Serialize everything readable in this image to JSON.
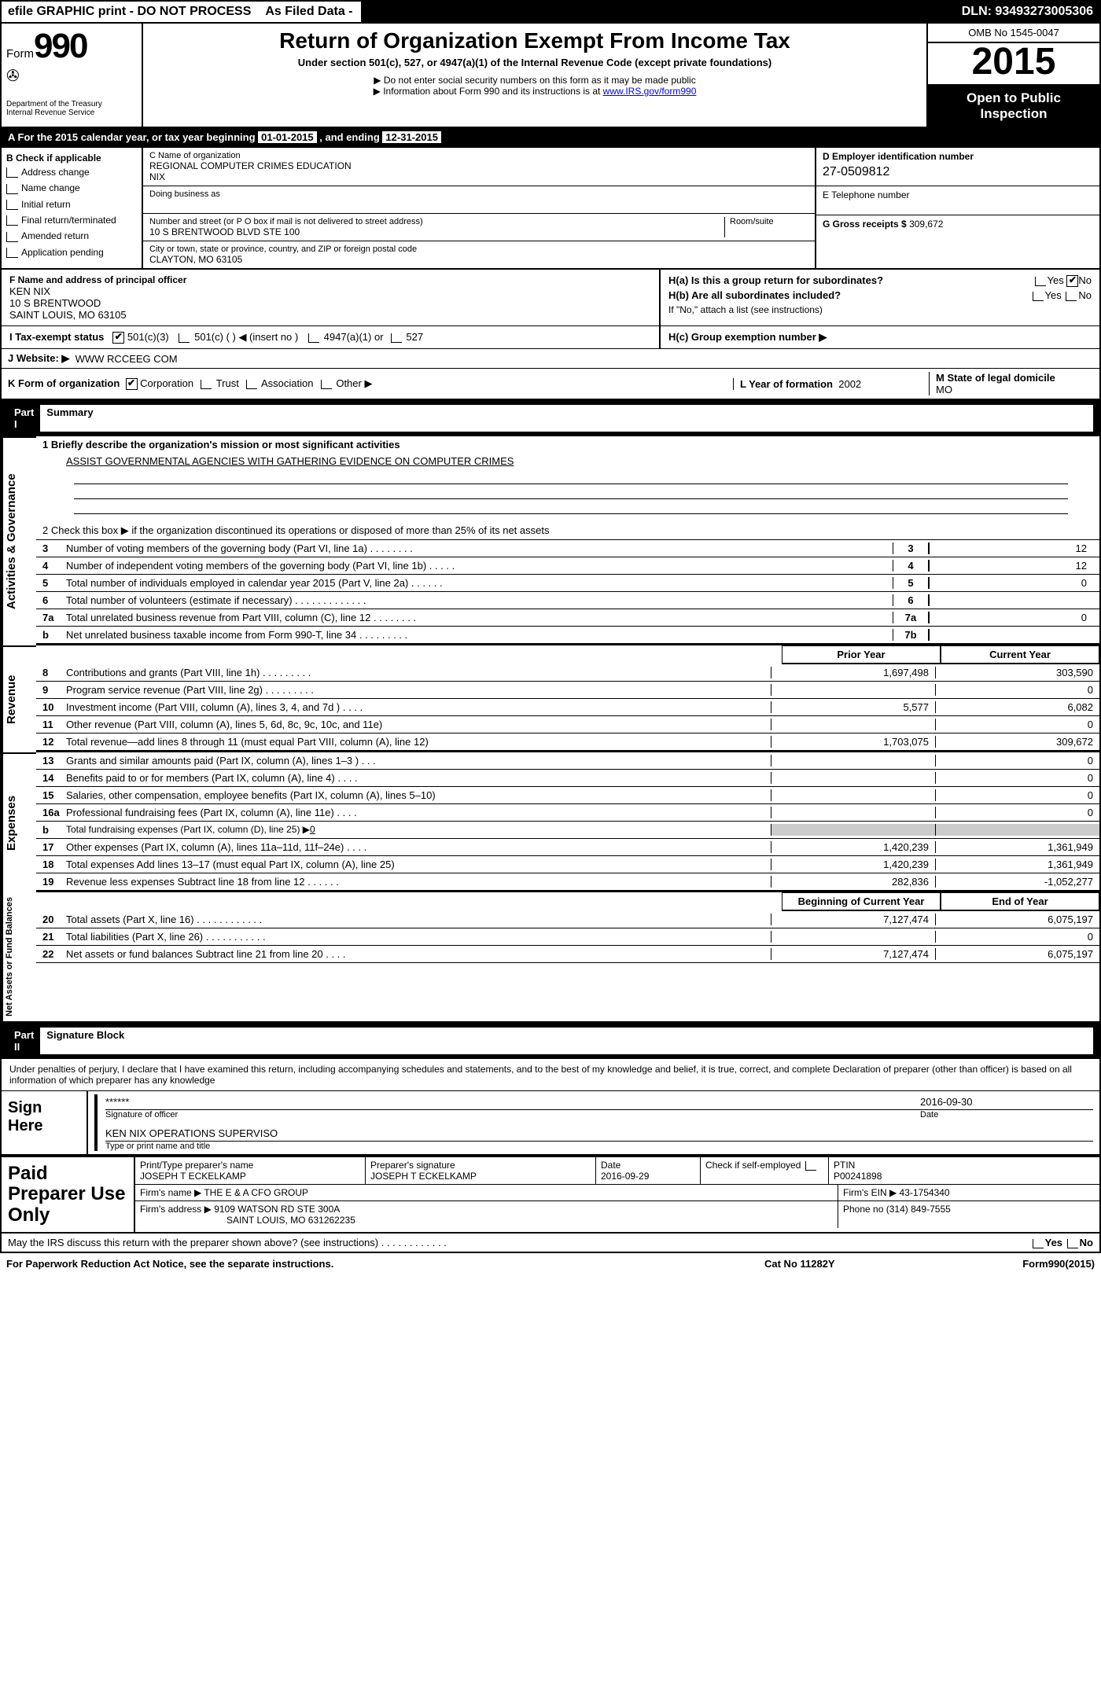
{
  "colors": {
    "black": "#000000",
    "white": "#ffffff",
    "shade": "#cccccc",
    "link": "#0000ee"
  },
  "header_bar": {
    "efile": "efile GRAPHIC print - DO NOT PROCESS",
    "asfiled": "As Filed Data -",
    "dln_label": "DLN:",
    "dln": "93493273005306"
  },
  "top_left": {
    "form_word": "Form",
    "form_num": "990",
    "dept": "Department of the Treasury",
    "irs": "Internal Revenue Service"
  },
  "top_mid": {
    "title": "Return of Organization Exempt From Income Tax",
    "sub": "Under section 501(c), 527, or 4947(a)(1) of the Internal Revenue Code (except private foundations)",
    "note1": "▶ Do not enter social security numbers on this form as it may be made public",
    "note2_pre": "▶ Information about Form 990 and its instructions is at ",
    "note2_link": "www.IRS.gov/form990"
  },
  "top_right": {
    "omb": "OMB No 1545-0047",
    "year": "2015",
    "open1": "Open to Public",
    "open2": "Inspection"
  },
  "lineA": {
    "pre": "A  For the 2015 calendar year, or tax year beginning ",
    "begin": "01-01-2015",
    "mid": " , and ending ",
    "end": "12-31-2015"
  },
  "colB": {
    "hdr": "B  Check if applicable",
    "items": [
      "Address change",
      "Name change",
      "Initial return",
      "Final return/terminated",
      "Amended return",
      "Application pending"
    ]
  },
  "colC": {
    "name_lbl": "C Name of organization",
    "name": "REGIONAL COMPUTER CRIMES EDUCATION",
    "name2": "NIX",
    "dba_lbl": "Doing business as",
    "street_lbl": "Number and street (or P O  box if mail is not delivered to street address)",
    "room_lbl": "Room/suite",
    "street": "10 S BRENTWOOD BLVD STE 100",
    "city_lbl": "City or town, state or province, country, and ZIP or foreign postal code",
    "city": "CLAYTON, MO  63105"
  },
  "colDEG": {
    "d_lbl": "D Employer identification number",
    "d_val": "27-0509812",
    "e_lbl": "E Telephone number",
    "g_lbl": "G Gross receipts $",
    "g_val": "309,672"
  },
  "officer": {
    "f_lbl": "F  Name and address of principal officer",
    "name": "KEN NIX",
    "addr1": "10 S BRENTWOOD",
    "addr2": "SAINT LOUIS, MO  63105"
  },
  "h_section": {
    "ha": "H(a)  Is this a group return for subordinates?",
    "hb": "H(b)  Are all subordinates included?",
    "hnote": "If \"No,\" attach a list  (see instructions)",
    "hc": "H(c)  Group exemption number ▶",
    "yes": "Yes",
    "no": "No"
  },
  "lineI": {
    "lbl": "I  Tax-exempt status",
    "opts": [
      "501(c)(3)",
      "501(c) (  ) ◀ (insert no )",
      "4947(a)(1) or",
      "527"
    ]
  },
  "lineJ": {
    "lbl": "J  Website: ▶",
    "val": "WWW RCCEEG COM"
  },
  "lineK": {
    "lbl": "K Form of organization",
    "opts": [
      "Corporation",
      "Trust",
      "Association",
      "Other ▶"
    ]
  },
  "lineL": {
    "lbl": "L Year of formation",
    "val": "2002"
  },
  "lineM": {
    "lbl": "M State of legal domicile",
    "val": "MO"
  },
  "part1": {
    "num": "Part I",
    "title": "Summary"
  },
  "summary": {
    "l1_lbl": "1 Briefly describe the organization's mission or most significant activities",
    "l1_val": "ASSIST GOVERNMENTAL AGENCIES WITH GATHERING EVIDENCE ON COMPUTER CRIMES",
    "l2": "2  Check this box ▶     if the organization discontinued its operations or disposed of more than 25% of its net assets",
    "rows": [
      {
        "n": "3",
        "t": "Number of voting members of the governing body (Part VI, line 1a)   .   .   .   .   .   .   .   .",
        "k": "3",
        "v": "12"
      },
      {
        "n": "4",
        "t": "Number of independent voting members of the governing body (Part VI, line 1b)   .   .   .   .   .",
        "k": "4",
        "v": "12"
      },
      {
        "n": "5",
        "t": "Total number of individuals employed in calendar year 2015 (Part V, line 2a)   .   .   .   .   .   .",
        "k": "5",
        "v": "0"
      },
      {
        "n": "6",
        "t": "Total number of volunteers (estimate if necessary)   .   .   .   .   .   .   .   .   .   .   .   .   .",
        "k": "6",
        "v": ""
      },
      {
        "n": "7a",
        "t": "Total unrelated business revenue from Part VIII, column (C), line 12   .   .   .   .   .   .   .   .",
        "k": "7a",
        "v": "0"
      },
      {
        "n": "b",
        "t": "Net unrelated business taxable income from Form 990-T, line 34   .   .   .   .   .   .   .   .   .",
        "k": "7b",
        "v": ""
      }
    ]
  },
  "two_col_hdr": {
    "prior": "Prior Year",
    "current": "Current Year"
  },
  "revenue": {
    "side": "Revenue",
    "rows": [
      {
        "n": "8",
        "t": "Contributions and grants (Part VIII, line 1h)   .   .   .   .   .   .   .   .   .",
        "p": "1,697,498",
        "c": "303,590"
      },
      {
        "n": "9",
        "t": "Program service revenue (Part VIII, line 2g)   .   .   .   .   .   .   .   .   .",
        "p": "",
        "c": "0"
      },
      {
        "n": "10",
        "t": "Investment income (Part VIII, column (A), lines 3, 4, and 7d )   .   .   .   .",
        "p": "5,577",
        "c": "6,082"
      },
      {
        "n": "11",
        "t": "Other revenue (Part VIII, column (A), lines 5, 6d, 8c, 9c, 10c, and 11e)",
        "p": "",
        "c": "0"
      },
      {
        "n": "12",
        "t": "Total revenue—add lines 8 through 11 (must equal Part VIII, column (A), line 12)",
        "p": "1,703,075",
        "c": "309,672"
      }
    ]
  },
  "expenses": {
    "side": "Expenses",
    "rows": [
      {
        "n": "13",
        "t": "Grants and similar amounts paid (Part IX, column (A), lines 1–3 )   .   .   .",
        "p": "",
        "c": "0"
      },
      {
        "n": "14",
        "t": "Benefits paid to or for members (Part IX, column (A), line 4)   .   .   .   .",
        "p": "",
        "c": "0"
      },
      {
        "n": "15",
        "t": "Salaries, other compensation, employee benefits (Part IX, column (A), lines 5–10)",
        "p": "",
        "c": "0"
      },
      {
        "n": "16a",
        "t": "Professional fundraising fees (Part IX, column (A), line 11e)   .   .   .   .",
        "p": "",
        "c": "0"
      },
      {
        "n": "b",
        "t": "Total fundraising expenses (Part IX, column (D), line 25) ▶",
        "p": "shade",
        "c": "shade",
        "bval": "0"
      },
      {
        "n": "17",
        "t": "Other expenses (Part IX, column (A), lines 11a–11d, 11f–24e)   .   .   .   .",
        "p": "1,420,239",
        "c": "1,361,949"
      },
      {
        "n": "18",
        "t": "Total expenses  Add lines 13–17 (must equal Part IX, column (A), line 25)",
        "p": "1,420,239",
        "c": "1,361,949"
      },
      {
        "n": "19",
        "t": "Revenue less expenses  Subtract line 18 from line 12   .   .   .   .   .   .",
        "p": "282,836",
        "c": "-1,052,277"
      }
    ]
  },
  "net_hdr": {
    "begin": "Beginning of Current Year",
    "end": "End of Year"
  },
  "netassets": {
    "side": "Net Assets or Fund Balances",
    "rows": [
      {
        "n": "20",
        "t": "Total assets (Part X, line 16)   .   .   .   .   .   .   .   .   .   .   .   .",
        "p": "7,127,474",
        "c": "6,075,197"
      },
      {
        "n": "21",
        "t": "Total liabilities (Part X, line 26)   .   .   .   .   .   .   .   .   .   .   .",
        "p": "",
        "c": "0"
      },
      {
        "n": "22",
        "t": "Net assets or fund balances  Subtract line 21 from line 20   .   .   .   .",
        "p": "7,127,474",
        "c": "6,075,197"
      }
    ]
  },
  "part2": {
    "num": "Part II",
    "title": "Signature Block"
  },
  "perjury": "Under penalties of perjury, I declare that I have examined this return, including accompanying schedules and statements, and to the best of my knowledge and belief, it is true, correct, and complete  Declaration of preparer (other than officer) is based on all information of which preparer has any knowledge",
  "sign": {
    "lbl": "Sign Here",
    "stars": "******",
    "sig_of_officer": "Signature of officer",
    "date_lbl": "Date",
    "date": "2016-09-30",
    "name_title": "KEN NIX OPERATIONS SUPERVISO",
    "type_lbl": "Type or print name and title"
  },
  "prep": {
    "lbl": "Paid Preparer Use Only",
    "p_name_lbl": "Print/Type preparer's name",
    "p_name": "JOSEPH T ECKELKAMP",
    "p_sig_lbl": "Preparer's signature",
    "p_sig": "JOSEPH T ECKELKAMP",
    "p_date_lbl": "Date",
    "p_date": "2016-09-29",
    "self_lbl": "Check      if self-employed",
    "ptin_lbl": "PTIN",
    "ptin": "P00241898",
    "firm_name_lbl": "Firm's name    ▶",
    "firm_name": "THE E & A CFO GROUP",
    "firm_ein_lbl": "Firm's EIN ▶",
    "firm_ein": "43-1754340",
    "firm_addr_lbl": "Firm's address ▶",
    "firm_addr1": "9109 WATSON RD STE 300A",
    "firm_addr2": "SAINT LOUIS, MO  631262235",
    "phone_lbl": "Phone no",
    "phone": "(314) 849-7555"
  },
  "discuss": "May the IRS discuss this return with the preparer shown above? (see instructions)   .   .   .   .   .   .   .   .   .   .   .   .",
  "footer": {
    "pra": "For Paperwork Reduction Act Notice, see the separate instructions.",
    "cat": "Cat No  11282Y",
    "form": "Form 990 (2015)"
  },
  "side_gov": "Activities & Governance"
}
